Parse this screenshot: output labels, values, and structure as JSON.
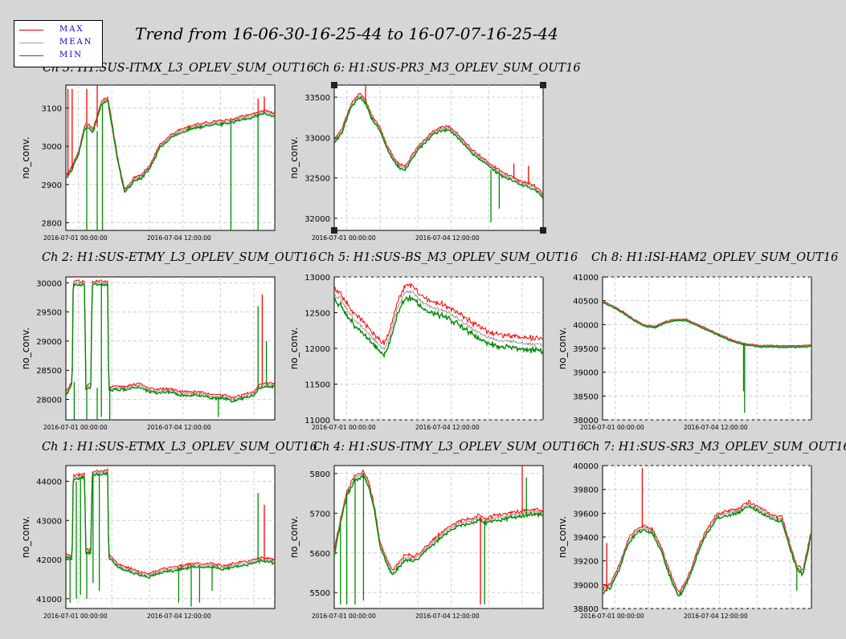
{
  "title": "Trend from 16-06-30-16-25-44 to 16-07-07-16-25-44",
  "legend": [
    {
      "label": "MAX",
      "color": "#dd0000"
    },
    {
      "label": "MEAN",
      "color": "#a0a0a0"
    },
    {
      "label": "MIN",
      "color": "#008800"
    }
  ],
  "colors": {
    "max": "#ff0000",
    "mean": "#999999",
    "min": "#008800",
    "background": "#d6d6d6",
    "grid": "#cfcfcf"
  },
  "chart_data": [
    {
      "type": "line",
      "title": "Ch 3: H1:SUS-ITMX_L3_OPLEV_SUM_OUT16",
      "ylabel": "no_conv.",
      "xticklabels": [
        "2016-07-01 00:00:00",
        "2016-07-04 12:00:00"
      ],
      "xlim": [
        0,
        1
      ],
      "ylim": [
        2780,
        3160
      ],
      "yticks": [
        2800,
        2900,
        3000,
        3100
      ],
      "series": [
        {
          "name": "MEAN",
          "x": [
            0,
            0.02,
            0.06,
            0.09,
            0.11,
            0.13,
            0.17,
            0.2,
            0.22,
            0.25,
            0.28,
            0.3,
            0.33,
            0.36,
            0.4,
            0.45,
            0.5,
            0.55,
            0.6,
            0.65,
            0.7,
            0.75,
            0.8,
            0.85,
            0.88,
            0.92,
            0.95,
            0.98,
            1
          ],
          "values": [
            2920,
            2935,
            2980,
            3050,
            3055,
            3040,
            3115,
            3125,
            3060,
            2960,
            2885,
            2895,
            2915,
            2920,
            2945,
            3000,
            3025,
            3040,
            3050,
            3055,
            3060,
            3062,
            3068,
            3075,
            3078,
            3085,
            3090,
            3085,
            3082
          ]
        }
      ],
      "spikes": [
        {
          "x": 0.01,
          "y1": 2920,
          "y2": 3150,
          "s": "max"
        },
        {
          "x": 0.03,
          "y1": 2940,
          "y2": 3150,
          "s": "max"
        },
        {
          "x": 0.1,
          "y1": 3060,
          "y2": 3150,
          "s": "max"
        },
        {
          "x": 0.15,
          "y1": 3050,
          "y2": 3160,
          "s": "max"
        },
        {
          "x": 0.92,
          "y1": 3085,
          "y2": 3125,
          "s": "max"
        },
        {
          "x": 0.95,
          "y1": 3090,
          "y2": 3130,
          "s": "max"
        },
        {
          "x": 0.1,
          "y1": 3055,
          "y2": 2780,
          "s": "min"
        },
        {
          "x": 0.15,
          "y1": 3040,
          "y2": 2780,
          "s": "min"
        },
        {
          "x": 0.175,
          "y1": 3110,
          "y2": 2780,
          "s": "min"
        },
        {
          "x": 0.79,
          "y1": 3067,
          "y2": 2780,
          "s": "min"
        },
        {
          "x": 0.92,
          "y1": 3085,
          "y2": 2780,
          "s": "min"
        }
      ],
      "noise": 6
    },
    {
      "type": "line",
      "title": "Ch 6: H1:SUS-PR3_M3_OPLEV_SUM_OUT16",
      "ylabel": "no_conv.",
      "xticklabels": [
        "2016-07-01 00:00:00",
        "2016-07-04 12:00:00"
      ],
      "xlim": [
        0,
        1
      ],
      "ylim": [
        31850,
        33650
      ],
      "yticks": [
        32000,
        32500,
        33000,
        33500
      ],
      "series": [
        {
          "name": "MEAN",
          "x": [
            0,
            0.04,
            0.08,
            0.12,
            0.15,
            0.18,
            0.22,
            0.25,
            0.28,
            0.31,
            0.34,
            0.37,
            0.41,
            0.45,
            0.5,
            0.55,
            0.6,
            0.65,
            0.7,
            0.75,
            0.8,
            0.85,
            0.88,
            0.92,
            0.96,
            1
          ],
          "values": [
            32950,
            33100,
            33400,
            33520,
            33450,
            33250,
            33100,
            32900,
            32750,
            32650,
            32620,
            32750,
            32900,
            33000,
            33100,
            33120,
            33000,
            32850,
            32750,
            32650,
            32550,
            32500,
            32450,
            32420,
            32380,
            32280
          ]
        }
      ],
      "spikes": [
        {
          "x": 0.15,
          "y1": 33450,
          "y2": 33650,
          "s": "max"
        },
        {
          "x": 0.86,
          "y1": 32500,
          "y2": 32680,
          "s": "max"
        },
        {
          "x": 0.93,
          "y1": 32420,
          "y2": 32650,
          "s": "max"
        },
        {
          "x": 0.75,
          "y1": 32600,
          "y2": 31950,
          "s": "min"
        },
        {
          "x": 0.79,
          "y1": 32550,
          "y2": 32120,
          "s": "min"
        }
      ],
      "noise": 30
    },
    {
      "type": "line",
      "title": "Ch 2: H1:SUS-ETMY_L3_OPLEV_SUM_OUT16",
      "ylabel": "no_conv.",
      "xticklabels": [
        "2016-07-01 00:00:00",
        "2016-07-04 12:00:00"
      ],
      "xlim": [
        0,
        1
      ],
      "ylim": [
        27650,
        30100
      ],
      "yticks": [
        28000,
        28500,
        29000,
        29500,
        30000
      ],
      "series": [
        {
          "name": "MEAN",
          "x": [
            0,
            0.03,
            0.035,
            0.09,
            0.095,
            0.12,
            0.125,
            0.2,
            0.205,
            0.25,
            0.3,
            0.35,
            0.4,
            0.45,
            0.5,
            0.55,
            0.6,
            0.65,
            0.7,
            0.75,
            0.8,
            0.85,
            0.9,
            0.92,
            0.95,
            1
          ],
          "values": [
            28100,
            28300,
            30000,
            30000,
            28200,
            28250,
            30000,
            30000,
            28200,
            28200,
            28200,
            28250,
            28150,
            28150,
            28150,
            28100,
            28100,
            28100,
            28050,
            28050,
            28000,
            28050,
            28100,
            28200,
            28250,
            28250
          ]
        }
      ],
      "spikes": [
        {
          "x": 0.04,
          "y1": 28300,
          "y2": 27650,
          "s": "min"
        },
        {
          "x": 0.1,
          "y1": 28200,
          "y2": 27650,
          "s": "min"
        },
        {
          "x": 0.15,
          "y1": 28200,
          "y2": 27650,
          "s": "min"
        },
        {
          "x": 0.17,
          "y1": 30000,
          "y2": 27700,
          "s": "min"
        },
        {
          "x": 0.21,
          "y1": 28200,
          "y2": 27650,
          "s": "min"
        },
        {
          "x": 0.73,
          "y1": 28050,
          "y2": 27700,
          "s": "min"
        },
        {
          "x": 0.92,
          "y1": 28200,
          "y2": 29600,
          "s": "min"
        },
        {
          "x": 0.94,
          "y1": 28250,
          "y2": 29800,
          "s": "max"
        },
        {
          "x": 0.96,
          "y1": 28250,
          "y2": 29000,
          "s": "min"
        }
      ],
      "noise": 40
    },
    {
      "type": "line",
      "title": "Ch 5: H1:SUS-BS_M3_OPLEV_SUM_OUT16",
      "ylabel": "no_conv.",
      "xticklabels": [
        "2016-07-01 00:00:00",
        "2016-07-04 12:00:00"
      ],
      "xlim": [
        0,
        1
      ],
      "ylim": [
        11000,
        13000
      ],
      "yticks": [
        11000,
        11500,
        12000,
        12500,
        13000
      ],
      "series": [
        {
          "name": "MEAN",
          "x": [
            0,
            0.03,
            0.06,
            0.1,
            0.15,
            0.2,
            0.24,
            0.27,
            0.3,
            0.34,
            0.38,
            0.42,
            0.46,
            0.5,
            0.55,
            0.6,
            0.65,
            0.7,
            0.75,
            0.8,
            0.85,
            0.9,
            0.95,
            1
          ],
          "values": [
            12750,
            12700,
            12550,
            12400,
            12250,
            12100,
            11980,
            12200,
            12550,
            12800,
            12780,
            12650,
            12580,
            12550,
            12500,
            12400,
            12300,
            12200,
            12150,
            12100,
            12100,
            12080,
            12060,
            12050
          ]
        }
      ],
      "spikes": [],
      "noise": 70,
      "bandOffset": 90
    },
    {
      "type": "line",
      "title": "Ch 8: H1:ISI-HAM2_OPLEV_SUM_OUT16",
      "ylabel": "no_conv.",
      "xticklabels": [
        "2016-07-01 00:00:00",
        "2016-07-04 12:00:00"
      ],
      "xlim": [
        0,
        1
      ],
      "ylim": [
        38000,
        41000
      ],
      "yticks": [
        38000,
        38500,
        39000,
        39500,
        40000,
        40500,
        41000
      ],
      "series": [
        {
          "name": "MEAN",
          "x": [
            0,
            0.05,
            0.1,
            0.15,
            0.2,
            0.25,
            0.3,
            0.35,
            0.4,
            0.45,
            0.5,
            0.55,
            0.6,
            0.65,
            0.7,
            0.75,
            0.8,
            0.85,
            0.9,
            0.95,
            1
          ],
          "values": [
            40480,
            40380,
            40250,
            40100,
            39980,
            39950,
            40050,
            40100,
            40100,
            40000,
            39900,
            39800,
            39700,
            39620,
            39580,
            39550,
            39550,
            39540,
            39540,
            39540,
            39560
          ]
        }
      ],
      "spikes": [
        {
          "x": 0.68,
          "y1": 39600,
          "y2": 38150,
          "s": "min"
        },
        {
          "x": 0.675,
          "y1": 39600,
          "y2": 38600,
          "s": "min"
        }
      ],
      "noise": 20
    },
    {
      "type": "line",
      "title": "Ch 1: H1:SUS-ETMX_L3_OPLEV_SUM_OUT16",
      "ylabel": "no_conv.",
      "xticklabels": [
        "2016-07-01 00:00:00",
        "2016-07-04 12:00:00"
      ],
      "xlim": [
        0,
        1
      ],
      "ylim": [
        40750,
        44400
      ],
      "yticks": [
        41000,
        42000,
        43000,
        44000
      ],
      "series": [
        {
          "name": "MEAN",
          "x": [
            0,
            0.03,
            0.035,
            0.09,
            0.095,
            0.12,
            0.125,
            0.2,
            0.205,
            0.25,
            0.3,
            0.35,
            0.4,
            0.45,
            0.5,
            0.55,
            0.6,
            0.65,
            0.7,
            0.75,
            0.8,
            0.85,
            0.9,
            0.92,
            0.95,
            1
          ],
          "values": [
            42100,
            42050,
            44100,
            44150,
            42200,
            42200,
            44200,
            44250,
            42100,
            41850,
            41750,
            41650,
            41600,
            41700,
            41750,
            41800,
            41850,
            41850,
            41850,
            41800,
            41850,
            41900,
            41950,
            42000,
            42000,
            41950
          ]
        }
      ],
      "spikes": [
        {
          "x": 0.02,
          "y1": 42100,
          "y2": 40900,
          "s": "min"
        },
        {
          "x": 0.05,
          "y1": 44000,
          "y2": 41000,
          "s": "min"
        },
        {
          "x": 0.07,
          "y1": 44100,
          "y2": 41100,
          "s": "min"
        },
        {
          "x": 0.1,
          "y1": 42200,
          "y2": 41000,
          "s": "min"
        },
        {
          "x": 0.13,
          "y1": 44200,
          "y2": 41400,
          "s": "min"
        },
        {
          "x": 0.16,
          "y1": 44200,
          "y2": 41200,
          "s": "min"
        },
        {
          "x": 0.54,
          "y1": 41800,
          "y2": 40900,
          "s": "min"
        },
        {
          "x": 0.6,
          "y1": 41850,
          "y2": 40800,
          "s": "min"
        },
        {
          "x": 0.64,
          "y1": 41850,
          "y2": 40900,
          "s": "min"
        },
        {
          "x": 0.7,
          "y1": 41850,
          "y2": 41200,
          "s": "min"
        },
        {
          "x": 0.92,
          "y1": 42000,
          "y2": 43700,
          "s": "min"
        },
        {
          "x": 0.95,
          "y1": 42000,
          "y2": 43400,
          "s": "max"
        }
      ],
      "noise": 60
    },
    {
      "type": "line",
      "title": "Ch 4: H1:SUS-ITMY_L3_OPLEV_SUM_OUT16",
      "ylabel": "no_conv.",
      "xticklabels": [
        "2016-07-01 00:00:00",
        "2016-07-04 12:00:00"
      ],
      "xlim": [
        0,
        1
      ],
      "ylim": [
        5460,
        5820
      ],
      "yticks": [
        5500,
        5600,
        5700,
        5800
      ],
      "series": [
        {
          "name": "MEAN",
          "x": [
            0,
            0.03,
            0.06,
            0.1,
            0.14,
            0.16,
            0.19,
            0.22,
            0.25,
            0.28,
            0.31,
            0.34,
            0.38,
            0.42,
            0.46,
            0.5,
            0.55,
            0.6,
            0.65,
            0.7,
            0.72,
            0.75,
            0.8,
            0.85,
            0.9,
            0.95,
            1
          ],
          "values": [
            5600,
            5680,
            5750,
            5790,
            5800,
            5780,
            5720,
            5620,
            5580,
            5550,
            5570,
            5590,
            5585,
            5600,
            5620,
            5640,
            5660,
            5675,
            5680,
            5690,
            5680,
            5685,
            5690,
            5695,
            5700,
            5705,
            5700
          ]
        }
      ],
      "spikes": [
        {
          "x": 0.03,
          "y1": 5680,
          "y2": 5470,
          "s": "min"
        },
        {
          "x": 0.06,
          "y1": 5750,
          "y2": 5470,
          "s": "min"
        },
        {
          "x": 0.1,
          "y1": 5790,
          "y2": 5470,
          "s": "min"
        },
        {
          "x": 0.14,
          "y1": 5800,
          "y2": 5480,
          "s": "min"
        },
        {
          "x": 0.7,
          "y1": 5690,
          "y2": 5470,
          "s": "max"
        },
        {
          "x": 0.72,
          "y1": 5680,
          "y2": 5470,
          "s": "min"
        },
        {
          "x": 0.9,
          "y1": 5700,
          "y2": 5820,
          "s": "max"
        },
        {
          "x": 0.92,
          "y1": 5700,
          "y2": 5790,
          "s": "min"
        }
      ],
      "noise": 8
    },
    {
      "type": "line",
      "title": "Ch 7: H1:SUS-SR3_M3_OPLEV_SUM_OUT16",
      "ylabel": "no_conv.",
      "xticklabels": [
        "2016-07-01 00:00:00",
        "2016-07-04 12:00:00"
      ],
      "xlim": [
        0,
        1
      ],
      "ylim": [
        38800,
        40000
      ],
      "yticks": [
        38800,
        39000,
        39200,
        39400,
        39600,
        39800,
        40000
      ],
      "series": [
        {
          "name": "MEAN",
          "x": [
            0,
            0.04,
            0.08,
            0.12,
            0.16,
            0.2,
            0.24,
            0.28,
            0.32,
            0.36,
            0.38,
            0.42,
            0.46,
            0.5,
            0.55,
            0.6,
            0.65,
            0.7,
            0.74,
            0.78,
            0.82,
            0.86,
            0.9,
            0.93,
            0.96,
            1
          ],
          "values": [
            38950,
            39000,
            39150,
            39350,
            39450,
            39480,
            39450,
            39300,
            39100,
            38920,
            38950,
            39100,
            39300,
            39450,
            39580,
            39600,
            39620,
            39680,
            39640,
            39600,
            39560,
            39550,
            39300,
            39150,
            39100,
            39450
          ]
        }
      ],
      "spikes": [
        {
          "x": 0.19,
          "y1": 39480,
          "y2": 39980,
          "s": "max"
        },
        {
          "x": 0.02,
          "y1": 38950,
          "y2": 39350,
          "s": "max"
        },
        {
          "x": 0.93,
          "y1": 39150,
          "y2": 38950,
          "s": "min"
        }
      ],
      "noise": 25
    }
  ]
}
